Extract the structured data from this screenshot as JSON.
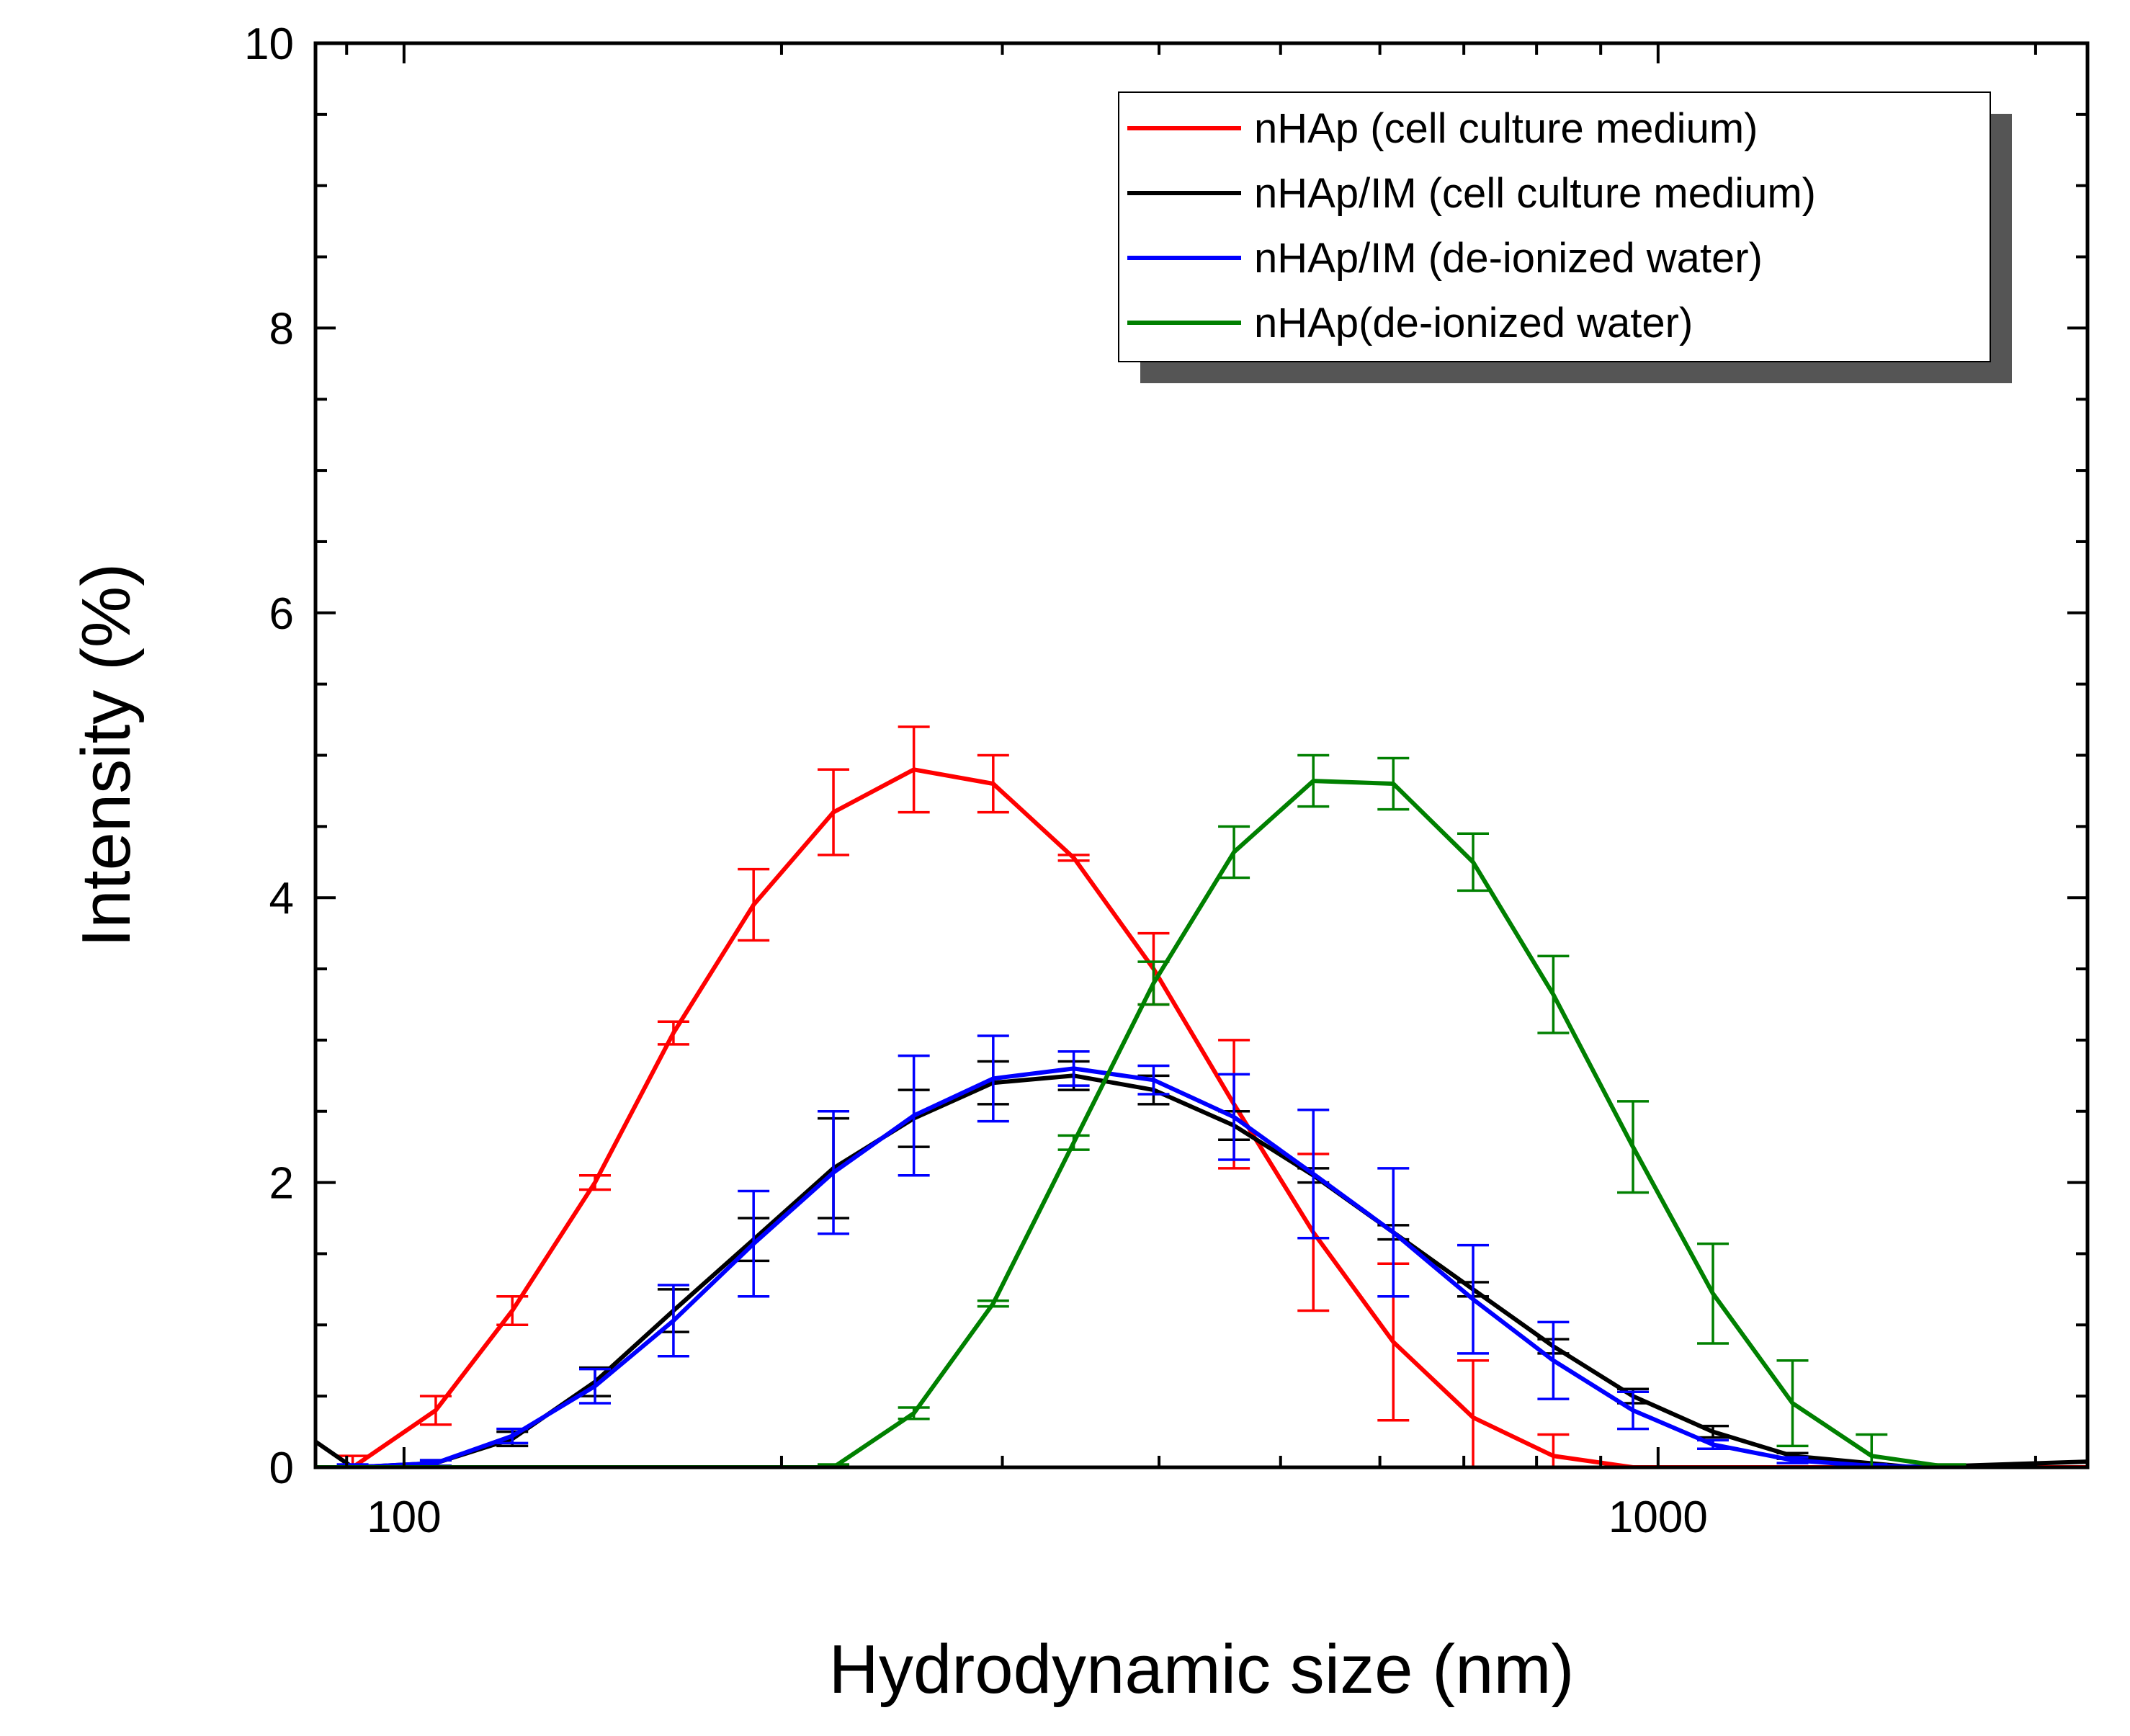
{
  "chart_data": {
    "type": "line",
    "title": "",
    "xlabel": "Hydrodynamic size (nm)",
    "ylabel": "Intensity (%)",
    "xscale": "log",
    "xlim": [
      85,
      2200
    ],
    "ylim": [
      0,
      10
    ],
    "x_ticks": [
      100,
      1000
    ],
    "x_tick_labels": [
      "100",
      "1000"
    ],
    "y_ticks": [
      0,
      2,
      4,
      6,
      8,
      10
    ],
    "y_tick_labels": [
      "0",
      "2",
      "4",
      "6",
      "8",
      "10"
    ],
    "grid": false,
    "legend_position": "top-right",
    "series": [
      {
        "name": "nHAp (cell culture medium)",
        "color": "#ff0000",
        "x": [
          91,
          106,
          122,
          142,
          164,
          190,
          220,
          255,
          295,
          342,
          396,
          459,
          531,
          615,
          712,
          825
        ],
        "y": [
          0.0,
          0.4,
          1.1,
          2.0,
          3.05,
          3.95,
          4.6,
          4.9,
          4.8,
          4.28,
          3.5,
          2.55,
          1.65,
          0.88,
          0.35,
          0.08
        ],
        "err": [
          0.08,
          0.1,
          0.1,
          0.05,
          0.08,
          0.25,
          0.3,
          0.3,
          0.2,
          0.02,
          0.25,
          0.45,
          0.55,
          0.55,
          0.4,
          0.15
        ],
        "x_tail": [
          955,
          1400,
          2200
        ],
        "y_tail": [
          0.0,
          0.0,
          0.0
        ]
      },
      {
        "name": "nHAp/IM (cell culture medium)",
        "color": "#000000",
        "x": [
          106,
          122,
          142,
          164,
          190,
          220,
          255,
          295,
          342,
          396,
          459,
          531,
          615,
          712,
          825,
          955,
          1106,
          1280
        ],
        "y": [
          0.03,
          0.2,
          0.6,
          1.1,
          1.6,
          2.1,
          2.45,
          2.7,
          2.75,
          2.65,
          2.4,
          2.05,
          1.65,
          1.25,
          0.85,
          0.5,
          0.25,
          0.08
        ],
        "err": [
          0.02,
          0.05,
          0.1,
          0.15,
          0.15,
          0.35,
          0.2,
          0.15,
          0.1,
          0.1,
          0.1,
          0.05,
          0.05,
          0.05,
          0.05,
          0.05,
          0.04,
          0.02
        ],
        "x_head": [
          85,
          91
        ],
        "y_head": [
          0.18,
          0.0
        ],
        "x_tail": [
          1600,
          2200
        ],
        "y_tail": [
          0.0,
          0.04
        ]
      },
      {
        "name": "nHAp/IM (de-ionized water)",
        "color": "#0000ff",
        "x": [
          91,
          106,
          122,
          142,
          164,
          190,
          220,
          255,
          295,
          342,
          396,
          459,
          531,
          615,
          712,
          825,
          955,
          1106,
          1280,
          1480,
          1710
        ],
        "y": [
          0.0,
          0.03,
          0.22,
          0.57,
          1.03,
          1.57,
          2.07,
          2.47,
          2.73,
          2.8,
          2.72,
          2.46,
          2.06,
          1.65,
          1.18,
          0.75,
          0.4,
          0.16,
          0.05,
          0.01,
          0.0
        ],
        "err": [
          0.02,
          0.02,
          0.05,
          0.12,
          0.25,
          0.37,
          0.43,
          0.42,
          0.3,
          0.12,
          0.1,
          0.3,
          0.45,
          0.45,
          0.38,
          0.27,
          0.13,
          0.03,
          0.02,
          0.01,
          0.0
        ]
      },
      {
        "name": "nHAp(de-ionized water)",
        "color": "#008000",
        "x": [
          220,
          255,
          295,
          342,
          396,
          459,
          531,
          615,
          712,
          825,
          955,
          1106,
          1280,
          1480,
          1710
        ],
        "y": [
          0.0,
          0.38,
          1.15,
          2.28,
          3.4,
          4.32,
          4.82,
          4.8,
          4.25,
          3.32,
          2.25,
          1.22,
          0.45,
          0.08,
          0.0
        ],
        "err": [
          0.02,
          0.04,
          0.02,
          0.05,
          0.15,
          0.18,
          0.18,
          0.18,
          0.2,
          0.27,
          0.32,
          0.35,
          0.3,
          0.15,
          0.02
        ],
        "x_head": [
          85,
          190
        ],
        "y_head": [
          0.0,
          0.0
        ]
      }
    ]
  }
}
